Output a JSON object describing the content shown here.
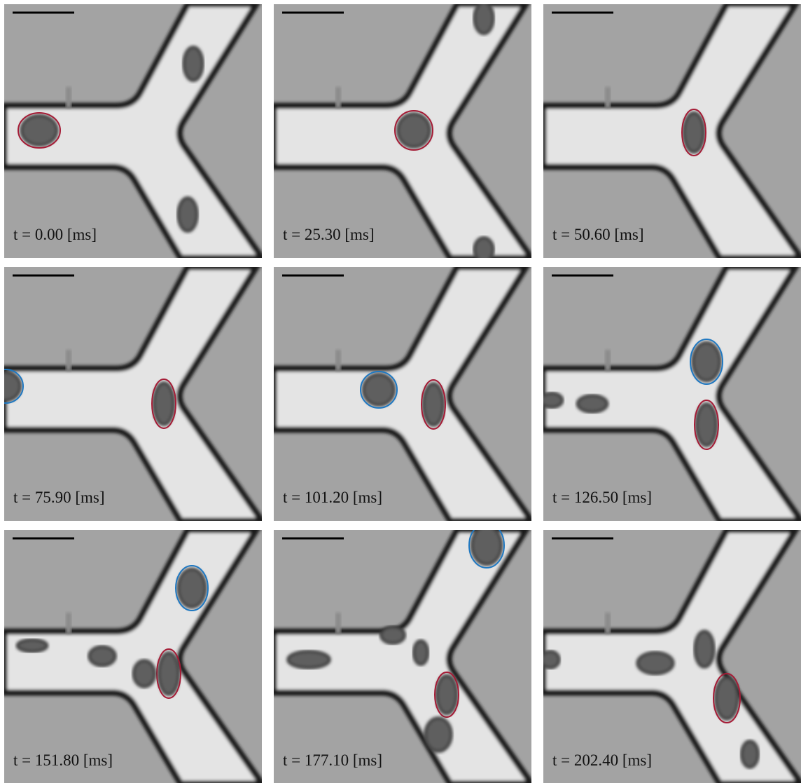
{
  "panels": [
    {
      "label": "t = 0.00 [ms]"
    },
    {
      "label": "t = 25.30 [ms]"
    },
    {
      "label": "t = 50.60 [ms]"
    },
    {
      "label": "t = 75.90 [ms]"
    },
    {
      "label": "t = 101.20 [ms]"
    },
    {
      "label": "t = 126.50 [ms]"
    },
    {
      "label": "t = 151.80 [ms]"
    },
    {
      "label": "t = 177.10 [ms]"
    },
    {
      "label": "t = 202.40 [ms]"
    }
  ]
}
